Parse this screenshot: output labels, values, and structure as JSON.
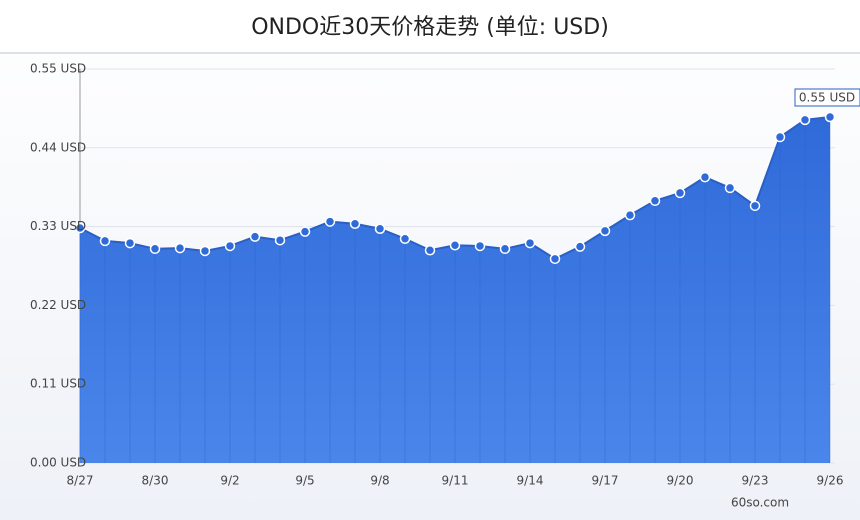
{
  "chart_data": {
    "type": "area",
    "title": "ONDO近30天价格走势 (单位: USD)",
    "categories": [
      "8/27",
      null,
      null,
      "8/30",
      null,
      null,
      "9/2",
      null,
      null,
      "9/5",
      null,
      null,
      "9/8",
      null,
      null,
      "9/11",
      null,
      null,
      "9/14",
      null,
      null,
      "9/17",
      null,
      null,
      "9/20",
      null,
      null,
      "9/23",
      null,
      null,
      "9/26"
    ],
    "values": [
      0.328,
      0.31,
      0.307,
      0.299,
      0.3,
      0.296,
      0.303,
      0.316,
      0.311,
      0.323,
      0.337,
      0.334,
      0.327,
      0.313,
      0.297,
      0.304,
      0.303,
      0.299,
      0.307,
      0.285,
      0.302,
      0.324,
      0.346,
      0.366,
      0.377,
      0.399,
      0.384,
      0.359,
      0.455,
      0.479,
      0.483
    ],
    "color": "#3a78e0",
    "ylim": [
      0,
      0.55
    ],
    "yticks": [
      {
        "value": 0,
        "label": "0.00 USD"
      },
      {
        "value": 0.11,
        "label": "0.11 USD"
      },
      {
        "value": 0.22,
        "label": "0.22 USD"
      },
      {
        "value": 0.33,
        "label": "0.33 USD"
      },
      {
        "value": 0.44,
        "label": "0.44 USD"
      },
      {
        "value": 0.55,
        "label": "0.55 USD"
      }
    ],
    "grid": true,
    "annotation": "0.55 USD",
    "watermark": "60so.com"
  }
}
